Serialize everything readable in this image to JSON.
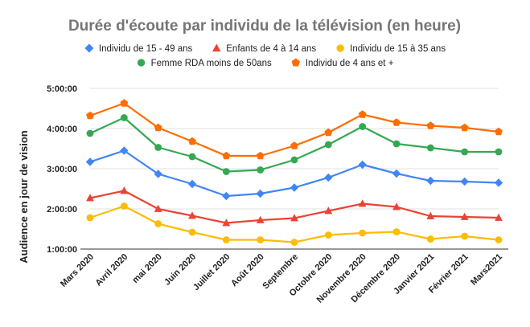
{
  "chart_data": {
    "type": "line",
    "title": "Durée d'écoute par individu de la télévision (en heure)",
    "xlabel": "",
    "ylabel": "Audience en jour de vision",
    "categories": [
      "Mars 2020",
      "Avril 2020",
      "mai 2020",
      "Juin 2020",
      "Juillet 2020",
      "Août 2020",
      "Septembre",
      "Octobre 2020",
      "Novembre 2020",
      "Décembre 2020",
      "Janvier 2021",
      "Février 2021",
      "Mars2021"
    ],
    "ylim": [
      1,
      5
    ],
    "yticks": [
      {
        "value": 1,
        "label": "1:00:00"
      },
      {
        "value": 2,
        "label": "2:00:00"
      },
      {
        "value": 3,
        "label": "3:00:00"
      },
      {
        "value": 4,
        "label": "4:00:00"
      },
      {
        "value": 5,
        "label": "5:00:00"
      }
    ],
    "grid": true,
    "legend_position": "top",
    "series": [
      {
        "name": "Individu de 15 - 49 ans",
        "color": "#4285f4",
        "marker": "diamond",
        "values": [
          3.17,
          3.45,
          2.87,
          2.62,
          2.32,
          2.38,
          2.53,
          2.78,
          3.1,
          2.88,
          2.7,
          2.68,
          2.65
        ]
      },
      {
        "name": "Enfants de 4 à 14 ans",
        "color": "#ea4335",
        "marker": "triangle",
        "values": [
          2.27,
          2.45,
          2.0,
          1.83,
          1.65,
          1.72,
          1.77,
          1.95,
          2.13,
          2.05,
          1.82,
          1.8,
          1.78
        ]
      },
      {
        "name": "Individu de 15 à 35 ans",
        "color": "#fbbc04",
        "marker": "circle",
        "values": [
          1.78,
          2.07,
          1.63,
          1.42,
          1.23,
          1.23,
          1.17,
          1.35,
          1.4,
          1.43,
          1.25,
          1.32,
          1.23
        ]
      },
      {
        "name": "Femme RDA moins de 50ans",
        "color": "#34a853",
        "marker": "circle",
        "values": [
          3.88,
          4.27,
          3.53,
          3.3,
          2.93,
          2.97,
          3.22,
          3.6,
          4.05,
          3.62,
          3.52,
          3.42,
          3.42
        ]
      },
      {
        "name": "Individu de 4 ans et +",
        "color": "#ff6d01",
        "marker": "pentagon",
        "values": [
          4.32,
          4.63,
          4.02,
          3.68,
          3.32,
          3.32,
          3.57,
          3.9,
          4.35,
          4.15,
          4.07,
          4.02,
          3.92
        ]
      }
    ]
  }
}
